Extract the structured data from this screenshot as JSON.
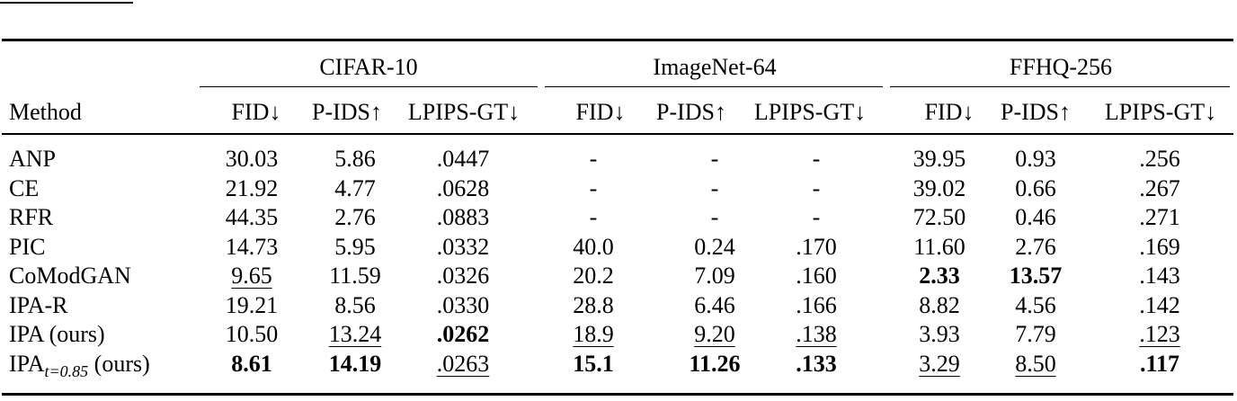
{
  "table": {
    "groups": [
      "CIFAR-10",
      "ImageNet-64",
      "FFHQ-256"
    ],
    "method_header": "Method",
    "metrics": [
      "FID↓",
      "P-IDS↑",
      "LPIPS-GT↓"
    ],
    "rows": [
      {
        "method": "ANP",
        "cells": [
          {
            "v": "30.03"
          },
          {
            "v": "5.86"
          },
          {
            "v": ".0447"
          },
          {
            "v": "-"
          },
          {
            "v": "-"
          },
          {
            "v": "-"
          },
          {
            "v": "39.95"
          },
          {
            "v": "0.93"
          },
          {
            "v": ".256"
          }
        ]
      },
      {
        "method": "CE",
        "cells": [
          {
            "v": "21.92"
          },
          {
            "v": "4.77"
          },
          {
            "v": ".0628"
          },
          {
            "v": "-"
          },
          {
            "v": "-"
          },
          {
            "v": "-"
          },
          {
            "v": "39.02"
          },
          {
            "v": "0.66"
          },
          {
            "v": ".267"
          }
        ]
      },
      {
        "method": "RFR",
        "cells": [
          {
            "v": "44.35"
          },
          {
            "v": "2.76"
          },
          {
            "v": ".0883"
          },
          {
            "v": "-"
          },
          {
            "v": "-"
          },
          {
            "v": "-"
          },
          {
            "v": "72.50"
          },
          {
            "v": "0.46"
          },
          {
            "v": ".271"
          }
        ]
      },
      {
        "method": "PIC",
        "cells": [
          {
            "v": "14.73"
          },
          {
            "v": "5.95"
          },
          {
            "v": ".0332"
          },
          {
            "v": "40.0"
          },
          {
            "v": "0.24"
          },
          {
            "v": ".170"
          },
          {
            "v": "11.60"
          },
          {
            "v": "2.76"
          },
          {
            "v": ".169"
          }
        ]
      },
      {
        "method": "CoModGAN",
        "cells": [
          {
            "v": "9.65",
            "u": true
          },
          {
            "v": "11.59"
          },
          {
            "v": ".0326"
          },
          {
            "v": "20.2"
          },
          {
            "v": "7.09"
          },
          {
            "v": ".160"
          },
          {
            "v": "2.33",
            "b": true
          },
          {
            "v": "13.57",
            "b": true
          },
          {
            "v": ".143"
          }
        ]
      },
      {
        "method": "IPA-R",
        "cells": [
          {
            "v": "19.21"
          },
          {
            "v": "8.56"
          },
          {
            "v": ".0330"
          },
          {
            "v": "28.8"
          },
          {
            "v": "6.46"
          },
          {
            "v": ".166"
          },
          {
            "v": "8.82"
          },
          {
            "v": "4.56"
          },
          {
            "v": ".142"
          }
        ]
      },
      {
        "method": "IPA (ours)",
        "cells": [
          {
            "v": "10.50"
          },
          {
            "v": "13.24",
            "u": true
          },
          {
            "v": ".0262",
            "b": true
          },
          {
            "v": "18.9",
            "u": true
          },
          {
            "v": "9.20",
            "u": true
          },
          {
            "v": ".138",
            "u": true
          },
          {
            "v": "3.93"
          },
          {
            "v": "7.79"
          },
          {
            "v": ".123",
            "u": true
          }
        ]
      },
      {
        "method": "IPA",
        "method_sub": "t=0.85",
        "method_suffix": " (ours)",
        "cells": [
          {
            "v": "8.61",
            "b": true
          },
          {
            "v": "14.19",
            "b": true
          },
          {
            "v": ".0263",
            "u": true
          },
          {
            "v": "15.1",
            "b": true
          },
          {
            "v": "11.26",
            "b": true
          },
          {
            "v": ".133",
            "b": true
          },
          {
            "v": "3.29",
            "u": true
          },
          {
            "v": "8.50",
            "u": true
          },
          {
            "v": ".117",
            "b": true
          }
        ]
      }
    ]
  }
}
